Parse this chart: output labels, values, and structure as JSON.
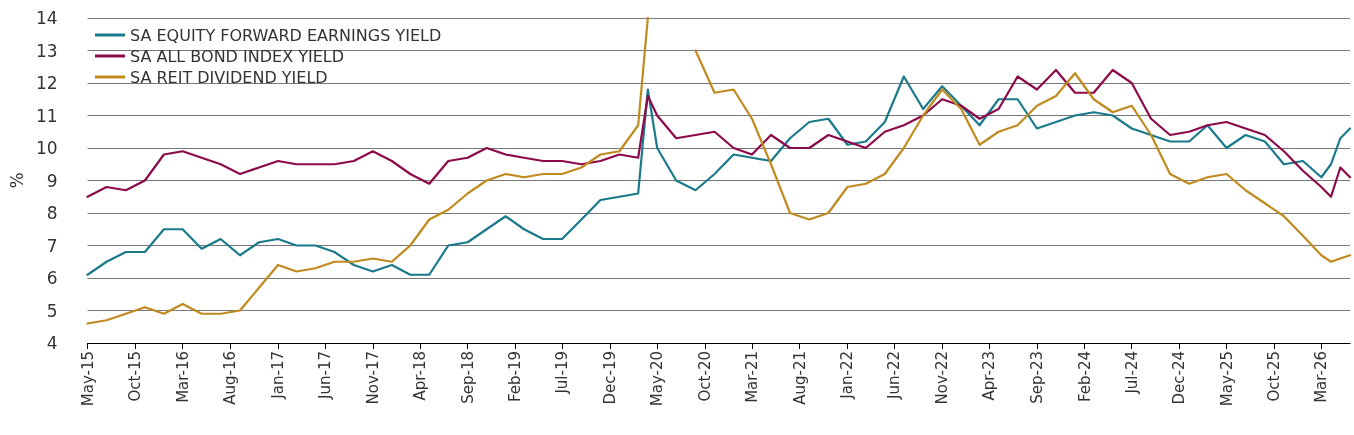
{
  "chart_data": {
    "type": "line",
    "ylabel": "%",
    "x": [
      "2015-05",
      "2015-07",
      "2015-09",
      "2015-11",
      "2016-01",
      "2016-03",
      "2016-05",
      "2016-07",
      "2016-09",
      "2016-11",
      "2017-01",
      "2017-03",
      "2017-05",
      "2017-07",
      "2017-09",
      "2017-11",
      "2018-01",
      "2018-03",
      "2018-05",
      "2018-07",
      "2018-09",
      "2018-11",
      "2019-01",
      "2019-03",
      "2019-05",
      "2019-07",
      "2019-09",
      "2019-11",
      "2020-01",
      "2020-03",
      "2020-04",
      "2020-05",
      "2020-07",
      "2020-09",
      "2020-11",
      "2021-01",
      "2021-03",
      "2021-05",
      "2021-07",
      "2021-09",
      "2021-11",
      "2022-01",
      "2022-03",
      "2022-05",
      "2022-07",
      "2022-09",
      "2022-11",
      "2023-01",
      "2023-03",
      "2023-05",
      "2023-07",
      "2023-09",
      "2023-11",
      "2024-01",
      "2024-03",
      "2024-05",
      "2024-07",
      "2024-09",
      "2024-11",
      "2025-01",
      "2025-03",
      "2025-05",
      "2025-07",
      "2025-09",
      "2025-11",
      "2026-01",
      "2026-03",
      "2026-04",
      "2026-05",
      "2026-06"
    ],
    "series": [
      {
        "name": "SA EQUITY FORWARD EARNINGS YIELD",
        "color": "#1a7a8c",
        "values": [
          6.1,
          6.5,
          6.8,
          6.8,
          7.5,
          7.5,
          6.9,
          7.2,
          6.7,
          7.1,
          7.2,
          7.0,
          7.0,
          6.8,
          6.4,
          6.2,
          6.4,
          6.1,
          6.1,
          7.0,
          7.1,
          7.5,
          7.9,
          7.5,
          7.2,
          7.2,
          7.8,
          8.4,
          8.5,
          8.6,
          11.8,
          10.0,
          9.0,
          8.7,
          9.2,
          9.8,
          9.7,
          9.6,
          10.3,
          10.8,
          10.9,
          10.1,
          10.2,
          10.8,
          12.2,
          11.2,
          11.9,
          11.3,
          10.7,
          11.5,
          11.5,
          10.6,
          10.8,
          11.0,
          11.1,
          11.0,
          10.6,
          10.4,
          10.2,
          10.2,
          10.7,
          10.0,
          10.4,
          10.2,
          9.5,
          9.6,
          9.1,
          9.5,
          10.3,
          10.6
        ]
      },
      {
        "name": "SA ALL BOND INDEX YIELD",
        "color": "#8c0a4a",
        "values": [
          8.5,
          8.8,
          8.7,
          9.0,
          9.8,
          9.9,
          9.7,
          9.5,
          9.2,
          9.4,
          9.6,
          9.5,
          9.5,
          9.5,
          9.6,
          9.9,
          9.6,
          9.2,
          8.9,
          9.6,
          9.7,
          10.0,
          9.8,
          9.7,
          9.6,
          9.6,
          9.5,
          9.6,
          9.8,
          9.7,
          11.6,
          11.0,
          10.3,
          10.4,
          10.5,
          10.0,
          9.8,
          10.4,
          10.0,
          10.0,
          10.4,
          10.2,
          10.0,
          10.5,
          10.7,
          11.0,
          11.5,
          11.3,
          10.9,
          11.2,
          12.2,
          11.8,
          12.4,
          11.7,
          11.7,
          12.4,
          12.0,
          10.9,
          10.4,
          10.5,
          10.7,
          10.8,
          10.6,
          10.4,
          9.9,
          9.3,
          8.8,
          8.5,
          9.4,
          9.1
        ]
      },
      {
        "name": "SA REIT DIVIDEND YIELD",
        "color": "#c08a1e",
        "values": [
          4.6,
          4.7,
          4.9,
          5.1,
          4.9,
          5.2,
          4.9,
          4.9,
          5.0,
          5.7,
          6.4,
          6.2,
          6.3,
          6.5,
          6.5,
          6.6,
          6.5,
          7.0,
          7.8,
          8.1,
          8.6,
          9.0,
          9.2,
          9.1,
          9.2,
          9.2,
          9.4,
          9.8,
          9.9,
          10.7,
          14,
          null,
          null,
          13.0,
          11.7,
          11.8,
          10.9,
          9.5,
          8.0,
          7.8,
          8.0,
          8.8,
          8.9,
          9.2,
          10.0,
          11.0,
          11.8,
          11.2,
          10.1,
          10.5,
          10.7,
          11.3,
          11.6,
          12.3,
          11.5,
          11.1,
          11.3,
          10.4,
          9.2,
          8.9,
          9.1,
          9.2,
          8.7,
          8.3,
          7.9,
          7.3,
          6.7,
          6.5,
          6.6,
          6.7
        ]
      }
    ],
    "xlim": [
      "2015-05",
      "2026-06"
    ],
    "xticks": [
      {
        "value": "2015-05",
        "label": "May-15"
      },
      {
        "value": "2015-10",
        "label": "Oct-15"
      },
      {
        "value": "2016-03",
        "label": "Mar-16"
      },
      {
        "value": "2016-08",
        "label": "Aug-16"
      },
      {
        "value": "2017-01",
        "label": "Jan-17"
      },
      {
        "value": "2017-06",
        "label": "Jun-17"
      },
      {
        "value": "2017-11",
        "label": "Nov-17"
      },
      {
        "value": "2018-04",
        "label": "Apr-18"
      },
      {
        "value": "2018-09",
        "label": "Sep-18"
      },
      {
        "value": "2019-02",
        "label": "Feb-19"
      },
      {
        "value": "2019-07",
        "label": "Jul-19"
      },
      {
        "value": "2019-12",
        "label": "Dec-19"
      },
      {
        "value": "2020-05",
        "label": "May-20"
      },
      {
        "value": "2020-10",
        "label": "Oct-20"
      },
      {
        "value": "2021-03",
        "label": "Mar-21"
      },
      {
        "value": "2021-08",
        "label": "Aug-21"
      },
      {
        "value": "2022-01",
        "label": "Jan-22"
      },
      {
        "value": "2022-06",
        "label": "Jun-22"
      },
      {
        "value": "2022-11",
        "label": "Nov-22"
      },
      {
        "value": "2023-04",
        "label": "Apr-23"
      },
      {
        "value": "2023-09",
        "label": "Sep-23"
      },
      {
        "value": "2024-02",
        "label": "Feb-24"
      },
      {
        "value": "2024-07",
        "label": "Jul-24"
      },
      {
        "value": "2024-12",
        "label": "Dec-24"
      },
      {
        "value": "2025-05",
        "label": "May-25"
      },
      {
        "value": "2025-10",
        "label": "Oct-25"
      },
      {
        "value": "2026-03",
        "label": "Mar-26"
      }
    ],
    "ylim": [
      4,
      14
    ],
    "yticks": [
      4,
      5,
      6,
      7,
      8,
      9,
      10,
      11,
      12,
      13,
      14
    ],
    "grid": "y",
    "legend": "top left",
    "marker": "none",
    "line_style": "solid"
  }
}
